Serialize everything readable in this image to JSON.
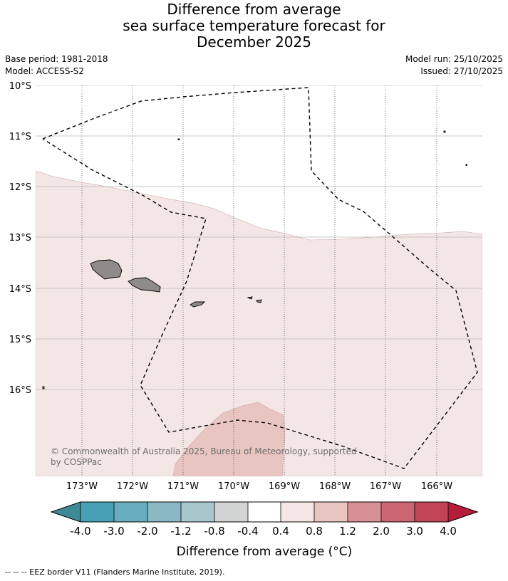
{
  "title": {
    "line1": "Difference from average",
    "line2": "sea surface temperature forecast for",
    "line3": "December 2025"
  },
  "meta": {
    "base_period": "Base period: 1981-2018",
    "model": "Model: ACCESS-S2",
    "model_run": "Model run: 25/10/2025",
    "issued": "Issued: 27/10/2025"
  },
  "map": {
    "lat_labels": [
      "10°S",
      "11°S",
      "12°S",
      "13°S",
      "14°S",
      "15°S",
      "16°S"
    ],
    "lon_labels": [
      "173°W",
      "172°W",
      "171°W",
      "170°W",
      "169°W",
      "168°W",
      "167°W",
      "166°W"
    ],
    "copyright_line1": "© Commonwealth of Australia 2025, Bureau of Meteorology, supported",
    "copyright_line2": "by COSPPac",
    "colors": {
      "land": "#8f8b8a",
      "anomaly_0_4_0_8": "#f4e6e4",
      "anomaly_0_8_1_2": "#e8c5c0",
      "grid": "#b9b9b9",
      "eez_line": "#000000"
    }
  },
  "colorbar": {
    "tick_labels": [
      "-4.0",
      "-3.0",
      "-2.0",
      "-1.2",
      "-0.8",
      "-0.4",
      "0.4",
      "0.8",
      "1.2",
      "2.0",
      "3.0",
      "4.0"
    ],
    "colors": [
      "#3f8895",
      "#47a1b4",
      "#68aec0",
      "#8ab8c4",
      "#a8c6cb",
      "#d2d4d4",
      "#ffffff",
      "#f4e6e4",
      "#e8c5c0",
      "#d98f96",
      "#cc6673",
      "#c24555",
      "#b31d3a"
    ],
    "label": "Difference from average (°C)"
  },
  "footnote": "--  --  -- EEZ border V11 (Flanders Marine Institute, 2019)."
}
